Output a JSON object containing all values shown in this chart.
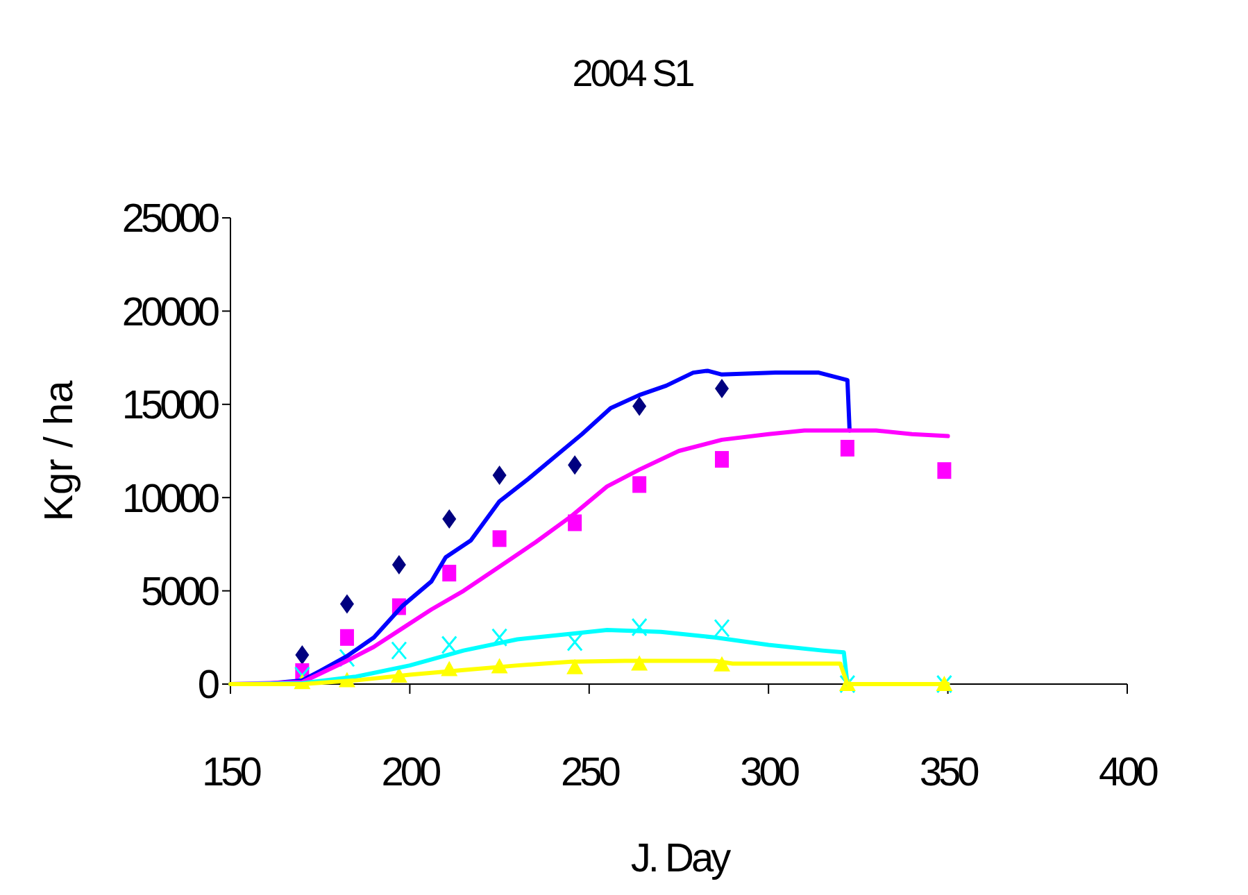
{
  "chart_data": {
    "type": "line",
    "title": "2004 S1",
    "xlabel": "J. Day",
    "ylabel": "Kgr / ha",
    "xlim": [
      150,
      400
    ],
    "xticks": [
      150,
      200,
      250,
      300,
      350,
      400
    ],
    "ylim": [
      0,
      25000
    ],
    "yticks": [
      0,
      5000,
      10000,
      15000,
      20000,
      25000
    ],
    "grid": false,
    "series": [
      {
        "type": "scatter",
        "marker": "diamond",
        "color": "#000080",
        "x": [
          170,
          182.5,
          197,
          211,
          225,
          246,
          264,
          287
        ],
        "values": [
          1560,
          4300,
          6400,
          8850,
          11200,
          11750,
          14900,
          15850
        ]
      },
      {
        "type": "scatter",
        "marker": "square",
        "color": "#ff00ff",
        "x": [
          170,
          182.5,
          197,
          211,
          225,
          246,
          264,
          287,
          322,
          349
        ],
        "values": [
          670,
          2500,
          4150,
          5950,
          7800,
          8650,
          10700,
          12050,
          12650,
          11450
        ]
      },
      {
        "type": "scatter",
        "marker": "cross",
        "color": "#00ffff",
        "x": [
          170,
          182.5,
          197,
          211,
          225,
          246,
          264,
          287,
          322,
          349
        ],
        "values": [
          450,
          1400,
          1800,
          2100,
          2500,
          2250,
          3050,
          3000,
          0,
          0
        ]
      },
      {
        "type": "scatter",
        "marker": "triangle",
        "color": "#ffff00",
        "x": [
          170,
          182.5,
          197,
          211,
          225,
          246,
          264,
          287,
          322,
          349
        ],
        "values": [
          100,
          200,
          450,
          800,
          950,
          900,
          1100,
          1050,
          0,
          0
        ]
      },
      {
        "marker": "none",
        "color": "#0000ff",
        "x": [
          150,
          159,
          170,
          175,
          182.5,
          190,
          198,
          206,
          210,
          217,
          225,
          233,
          240.5,
          248,
          256,
          264,
          271.5,
          279,
          283,
          287,
          302,
          314,
          322,
          322.6
        ],
        "values": [
          0,
          0,
          200,
          700,
          1500,
          2500,
          4200,
          5500,
          6800,
          7700,
          9800,
          11000,
          12200,
          13400,
          14800,
          15500,
          16000,
          16700,
          16800,
          16600,
          16700,
          16700,
          16300,
          13600
        ]
      },
      {
        "marker": "none",
        "color": "#ff00ff",
        "x": [
          150,
          170,
          182,
          190,
          198,
          206,
          215,
          225,
          235,
          245,
          255,
          264,
          275,
          287,
          300,
          310,
          330,
          340,
          350
        ],
        "values": [
          0,
          100,
          1200,
          2000,
          3000,
          4000,
          5000,
          6300,
          7600,
          9000,
          10600,
          11500,
          12500,
          13100,
          13400,
          13600,
          13600,
          13400,
          13300
        ]
      },
      {
        "marker": "none",
        "color": "#00ffff",
        "x": [
          150,
          170,
          185,
          200,
          215,
          230,
          245,
          255,
          270,
          285,
          300,
          315,
          321,
          322,
          350
        ],
        "values": [
          0,
          50,
          400,
          1000,
          1800,
          2400,
          2700,
          2900,
          2800,
          2500,
          2100,
          1800,
          1700,
          0,
          0
        ]
      },
      {
        "marker": "none",
        "color": "#ffff00",
        "x": [
          150,
          170,
          185,
          200,
          215,
          230,
          245,
          260,
          285,
          290,
          320,
          322,
          350
        ],
        "values": [
          0,
          0,
          200,
          500,
          750,
          1000,
          1200,
          1250,
          1250,
          1100,
          1100,
          0,
          0
        ]
      }
    ]
  }
}
